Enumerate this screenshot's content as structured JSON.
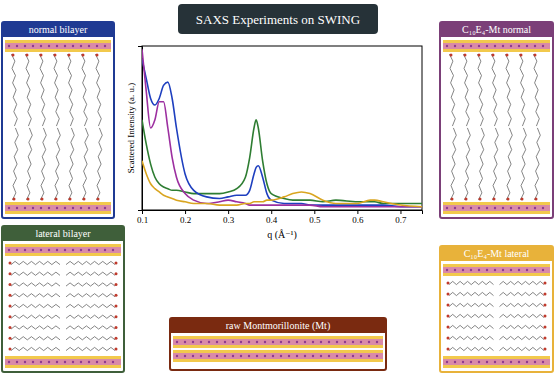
{
  "chart_data": {
    "type": "line",
    "title": "SAXS Experiments on SWING",
    "x_label": "q (Å⁻¹)",
    "y_label": "Scattered Intensity (a. u.)",
    "x": [
      0.1,
      0.11,
      0.12,
      0.13,
      0.14,
      0.15,
      0.16,
      0.17,
      0.18,
      0.2,
      0.22,
      0.25,
      0.28,
      0.3,
      0.32,
      0.34,
      0.35,
      0.36,
      0.365,
      0.37,
      0.38,
      0.39,
      0.4,
      0.43,
      0.45,
      0.47,
      0.49,
      0.52,
      0.55,
      0.6,
      0.63,
      0.64,
      0.66,
      0.7,
      0.75
    ],
    "series": [
      {
        "color": "#2e7d32",
        "values": [
          0.55,
          0.4,
          0.28,
          0.2,
          0.16,
          0.14,
          0.13,
          0.12,
          0.12,
          0.11,
          0.1,
          0.1,
          0.1,
          0.11,
          0.13,
          0.2,
          0.32,
          0.5,
          0.55,
          0.5,
          0.3,
          0.16,
          0.1,
          0.07,
          0.06,
          0.06,
          0.06,
          0.05,
          0.06,
          0.05,
          0.05,
          0.05,
          0.04,
          0.04,
          0.04
        ]
      },
      {
        "color": "#1e3fbf",
        "values": [
          0.92,
          0.8,
          0.68,
          0.64,
          0.68,
          0.76,
          0.78,
          0.68,
          0.5,
          0.22,
          0.12,
          0.08,
          0.07,
          0.08,
          0.09,
          0.09,
          0.12,
          0.22,
          0.26,
          0.27,
          0.2,
          0.1,
          0.06,
          0.04,
          0.04,
          0.04,
          0.03,
          0.03,
          0.03,
          0.03,
          0.03,
          0.03,
          0.03,
          0.02,
          0.02
        ]
      },
      {
        "color": "#9c2fa0",
        "values": [
          0.98,
          0.72,
          0.5,
          0.55,
          0.66,
          0.66,
          0.5,
          0.32,
          0.2,
          0.1,
          0.06,
          0.04,
          0.05,
          0.06,
          0.05,
          0.04,
          0.03,
          0.03,
          0.03,
          0.03,
          0.03,
          0.03,
          0.03,
          0.03,
          0.03,
          0.03,
          0.03,
          0.02,
          0.02,
          0.02,
          0.02,
          0.02,
          0.02,
          0.02,
          0.02
        ]
      },
      {
        "color": "#d9a520",
        "values": [
          0.3,
          0.22,
          0.16,
          0.13,
          0.11,
          0.09,
          0.08,
          0.07,
          0.06,
          0.05,
          0.04,
          0.04,
          0.03,
          0.03,
          0.03,
          0.04,
          0.04,
          0.05,
          0.05,
          0.05,
          0.05,
          0.06,
          0.06,
          0.08,
          0.1,
          0.11,
          0.1,
          0.06,
          0.04,
          0.04,
          0.06,
          0.06,
          0.05,
          0.03,
          0.02
        ]
      }
    ],
    "xlim": [
      0.1,
      0.75
    ],
    "xticks": [
      0.1,
      0.2,
      0.3,
      0.4,
      0.5,
      0.6,
      0.7
    ],
    "ylim": [
      0,
      1
    ],
    "tick_labels": "x",
    "grid": false
  },
  "panels": [
    {
      "title": "normal bilayer",
      "color": "#1f3a93"
    },
    {
      "title": "C₁₀E₄-Mt normal",
      "color": "#7b3f78"
    },
    {
      "title": "lateral bilayer",
      "color": "#3f5f3a"
    },
    {
      "title": "C₁₀E₄-Mt lateral",
      "color": "#e8b23a"
    },
    {
      "title": "raw Montmorillonite (Mt)",
      "color": "#7a2a10"
    }
  ]
}
